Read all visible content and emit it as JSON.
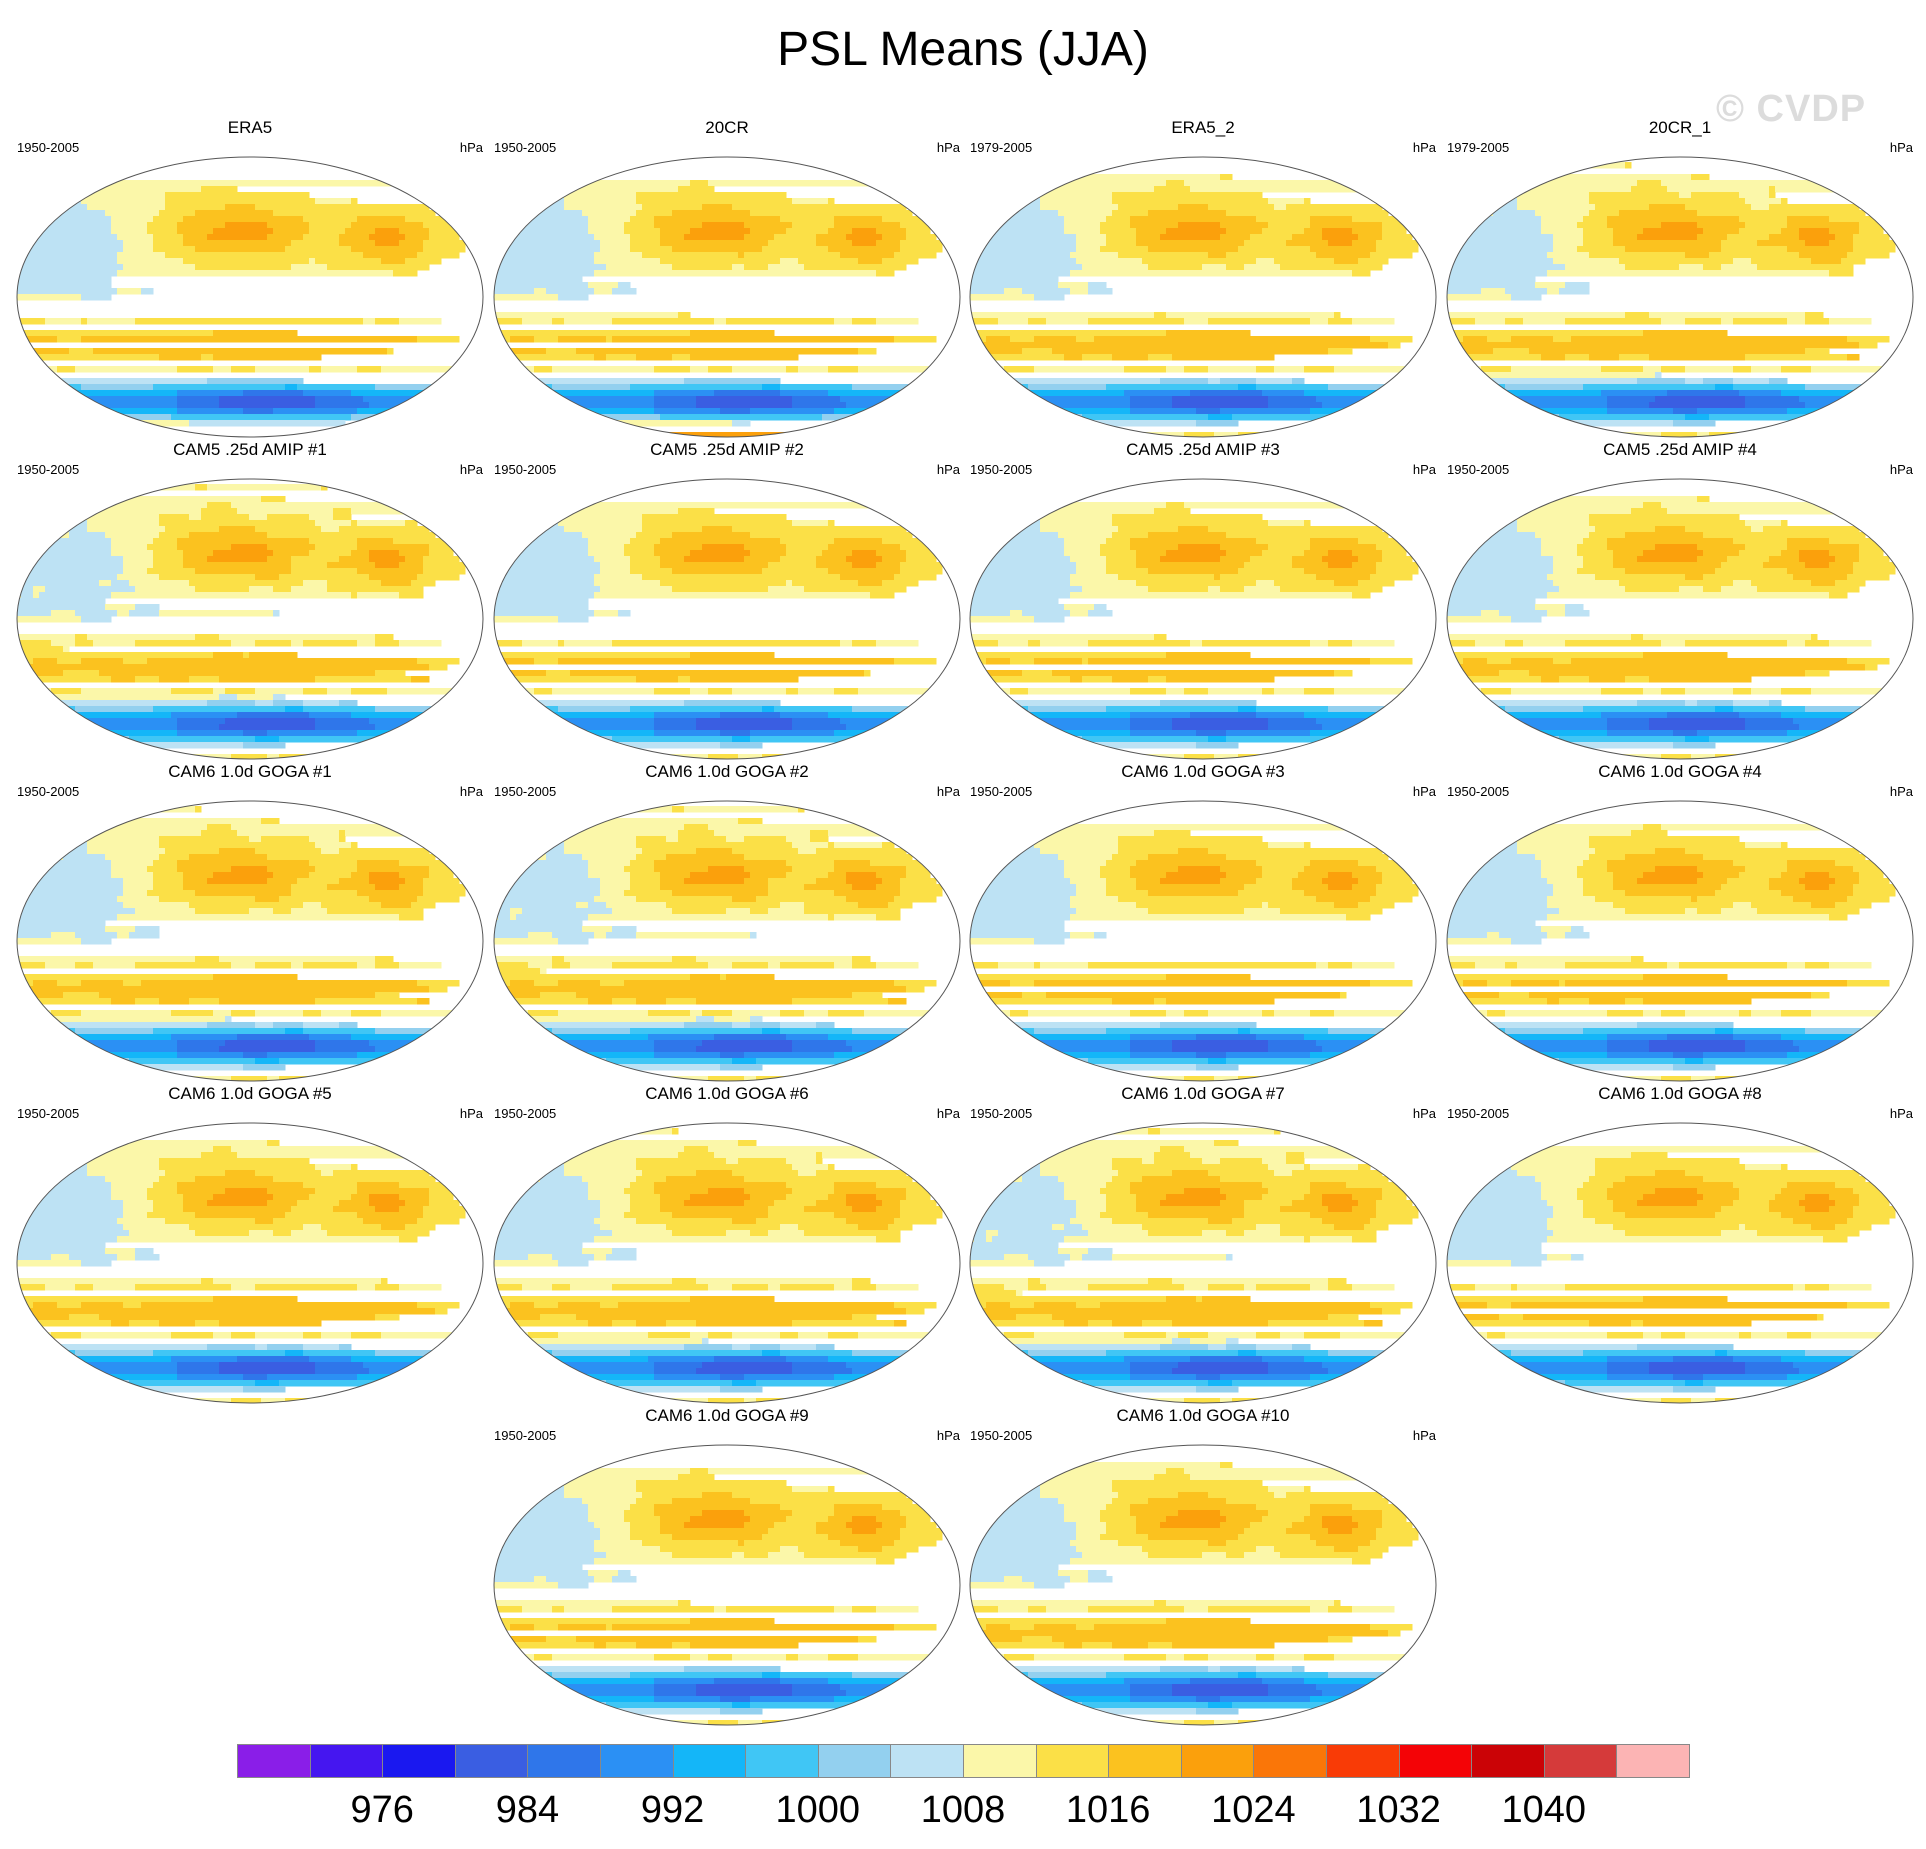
{
  "title": "PSL Means (JJA)",
  "watermark": "© CVDP",
  "units": "hPa",
  "panels": [
    {
      "title": "ERA5",
      "years": "1950-2005"
    },
    {
      "title": "20CR",
      "years": "1950-2005"
    },
    {
      "title": "ERA5_2",
      "years": "1979-2005"
    },
    {
      "title": "20CR_1",
      "years": "1979-2005"
    },
    {
      "title": "CAM5 .25d AMIP #1",
      "years": "1950-2005"
    },
    {
      "title": "CAM5 .25d AMIP #2",
      "years": "1950-2005"
    },
    {
      "title": "CAM5 .25d AMIP #3",
      "years": "1950-2005"
    },
    {
      "title": "CAM5 .25d AMIP #4",
      "years": "1950-2005"
    },
    {
      "title": "CAM6 1.0d GOGA #1",
      "years": "1950-2005"
    },
    {
      "title": "CAM6 1.0d GOGA #2",
      "years": "1950-2005"
    },
    {
      "title": "CAM6 1.0d GOGA #3",
      "years": "1950-2005"
    },
    {
      "title": "CAM6 1.0d GOGA #4",
      "years": "1950-2005"
    },
    {
      "title": "CAM6 1.0d GOGA #5",
      "years": "1950-2005"
    },
    {
      "title": "CAM6 1.0d GOGA #6",
      "years": "1950-2005"
    },
    {
      "title": "CAM6 1.0d GOGA #7",
      "years": "1950-2005"
    },
    {
      "title": "CAM6 1.0d GOGA #8",
      "years": "1950-2005"
    },
    {
      "title": "CAM6 1.0d GOGA #9",
      "years": "1950-2005"
    },
    {
      "title": "CAM6 1.0d GOGA #10",
      "years": "1950-2005"
    }
  ],
  "chart_data": {
    "type": "heatmap",
    "title": "PSL Means (JJA)",
    "variable": "PSL",
    "season": "JJA",
    "units": "hPa",
    "projection": "robinson",
    "panel_count": 18,
    "colorbar": {
      "levels": [
        972,
        976,
        980,
        984,
        988,
        992,
        996,
        1000,
        1004,
        1008,
        1012,
        1016,
        1020,
        1024,
        1028,
        1032,
        1036,
        1040,
        1044
      ],
      "tick_labels": [
        "976",
        "984",
        "992",
        "1000",
        "1008",
        "1016",
        "1024",
        "1032",
        "1040"
      ],
      "colors": [
        "#8a1ee8",
        "#4516f0",
        "#1a18f0",
        "#3a5ee2",
        "#2f76ea",
        "#2b90f4",
        "#14b6f8",
        "#40c6f5",
        "#93d0ef",
        "#bde2f4",
        "#fbf7a9",
        "#fbe047",
        "#fbc21f",
        "#fba00c",
        "#fa7608",
        "#f93b06",
        "#f40306",
        "#cb0306",
        "#d53a3a",
        "#fcb4b4"
      ]
    }
  }
}
